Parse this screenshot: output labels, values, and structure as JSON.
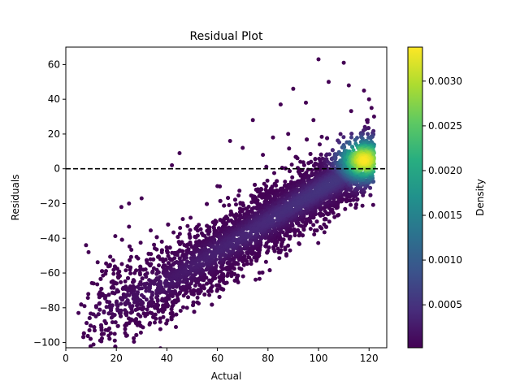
{
  "chart_data": {
    "type": "scatter",
    "title": "Residual Plot",
    "xlabel": "Actual",
    "ylabel": "Residuals",
    "xlim": [
      0,
      127
    ],
    "ylim": [
      -103,
      70
    ],
    "xticks": [
      0,
      20,
      40,
      60,
      80,
      100,
      120
    ],
    "yticks": [
      -100,
      -80,
      -60,
      -40,
      -20,
      0,
      20,
      40,
      60
    ],
    "reference_line": {
      "y": 0,
      "style": "dashed",
      "color": "#000000"
    },
    "grid": false,
    "point_density_model": {
      "description": "points densely fill a diagonal band from lower-left to upper-right; residual roughly equals actual minus about 115; densest near actual 118, residual 5",
      "band_center": [
        [
          10,
          -85
        ],
        [
          40,
          -65
        ],
        [
          80,
          -30
        ],
        [
          120,
          5
        ]
      ],
      "x_range": [
        5,
        122
      ],
      "density_peak": {
        "x": 118,
        "y": 5
      }
    },
    "sample_points": [
      [
        5,
        -83
      ],
      [
        8,
        -44
      ],
      [
        9,
        -48
      ],
      [
        11,
        -66
      ],
      [
        12,
        -79
      ],
      [
        14,
        -90
      ],
      [
        15,
        -95
      ],
      [
        18,
        -80
      ],
      [
        22,
        -22
      ],
      [
        25,
        -20
      ],
      [
        30,
        -17
      ],
      [
        33,
        -55
      ],
      [
        38,
        -42
      ],
      [
        42,
        2
      ],
      [
        45,
        9
      ],
      [
        50,
        -45
      ],
      [
        60,
        -10
      ],
      [
        65,
        16
      ],
      [
        70,
        12
      ],
      [
        74,
        28
      ],
      [
        78,
        8
      ],
      [
        82,
        18
      ],
      [
        85,
        37
      ],
      [
        88,
        20
      ],
      [
        90,
        46
      ],
      [
        95,
        38
      ],
      [
        98,
        28
      ],
      [
        100,
        63
      ],
      [
        104,
        50
      ],
      [
        110,
        61
      ],
      [
        112,
        48
      ],
      [
        118,
        45
      ],
      [
        120,
        40
      ],
      [
        121,
        35
      ],
      [
        122,
        30
      ],
      [
        119,
        5
      ],
      [
        116,
        2
      ],
      [
        110,
        -5
      ]
    ],
    "colorbar": {
      "label": "Density",
      "colormap": "viridis",
      "range": [
        2e-05,
        0.00338
      ],
      "ticks": [
        0.0005,
        0.001,
        0.0015,
        0.002,
        0.0025,
        0.003
      ],
      "tick_labels": [
        "0.0005",
        "0.0010",
        "0.0015",
        "0.0020",
        "0.0025",
        "0.0030"
      ]
    },
    "colors": {
      "low_density": "#440154",
      "high_density": "#fde725"
    }
  }
}
